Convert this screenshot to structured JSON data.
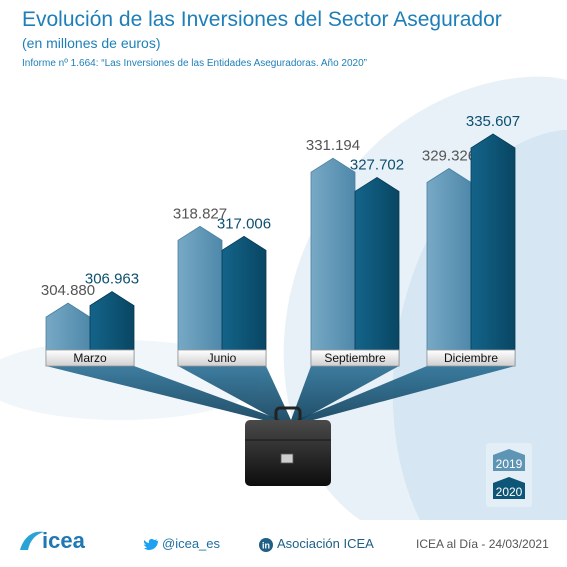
{
  "header": {
    "title": "Evolución de las Inversiones del Sector Asegurador",
    "subtitle": "(en millones de euros)",
    "source": "Informe nº 1.664: “Las Inversiones de las Entidades Aseguradoras. Año 2020”"
  },
  "chart_data": {
    "type": "bar",
    "title": "Evolución de las Inversiones del Sector Asegurador",
    "subtitle": "(en millones de euros)",
    "categories": [
      "Marzo",
      "Junio",
      "Septiembre",
      "Diciembre"
    ],
    "series": [
      {
        "name": "2019",
        "values": [
          304880,
          318827,
          331194,
          329326
        ],
        "labels": [
          "304.880",
          "318.827",
          "331.194",
          "329.326"
        ],
        "color": "#5e95b5"
      },
      {
        "name": "2020",
        "values": [
          306963,
          317006,
          327702,
          335607
        ],
        "labels": [
          "306.963",
          "317.006",
          "327.702",
          "335.607"
        ],
        "color": "#0d5677"
      }
    ],
    "legend_placement": "bottom-right",
    "grid": false
  },
  "legend": {
    "items": [
      "2019",
      "2020"
    ]
  },
  "footer": {
    "brand": "icea",
    "twitter": "@icea_es",
    "linkedin": "Asociación ICEA",
    "date": "ICEA al Día - 24/03/2021"
  },
  "colors": {
    "accent": "#1e7fb8",
    "bar2019": "#5e95b5",
    "bar2020": "#0d5677"
  },
  "icons": [
    "briefcase-icon",
    "twitter-icon",
    "linkedin-icon",
    "icea-logo"
  ]
}
